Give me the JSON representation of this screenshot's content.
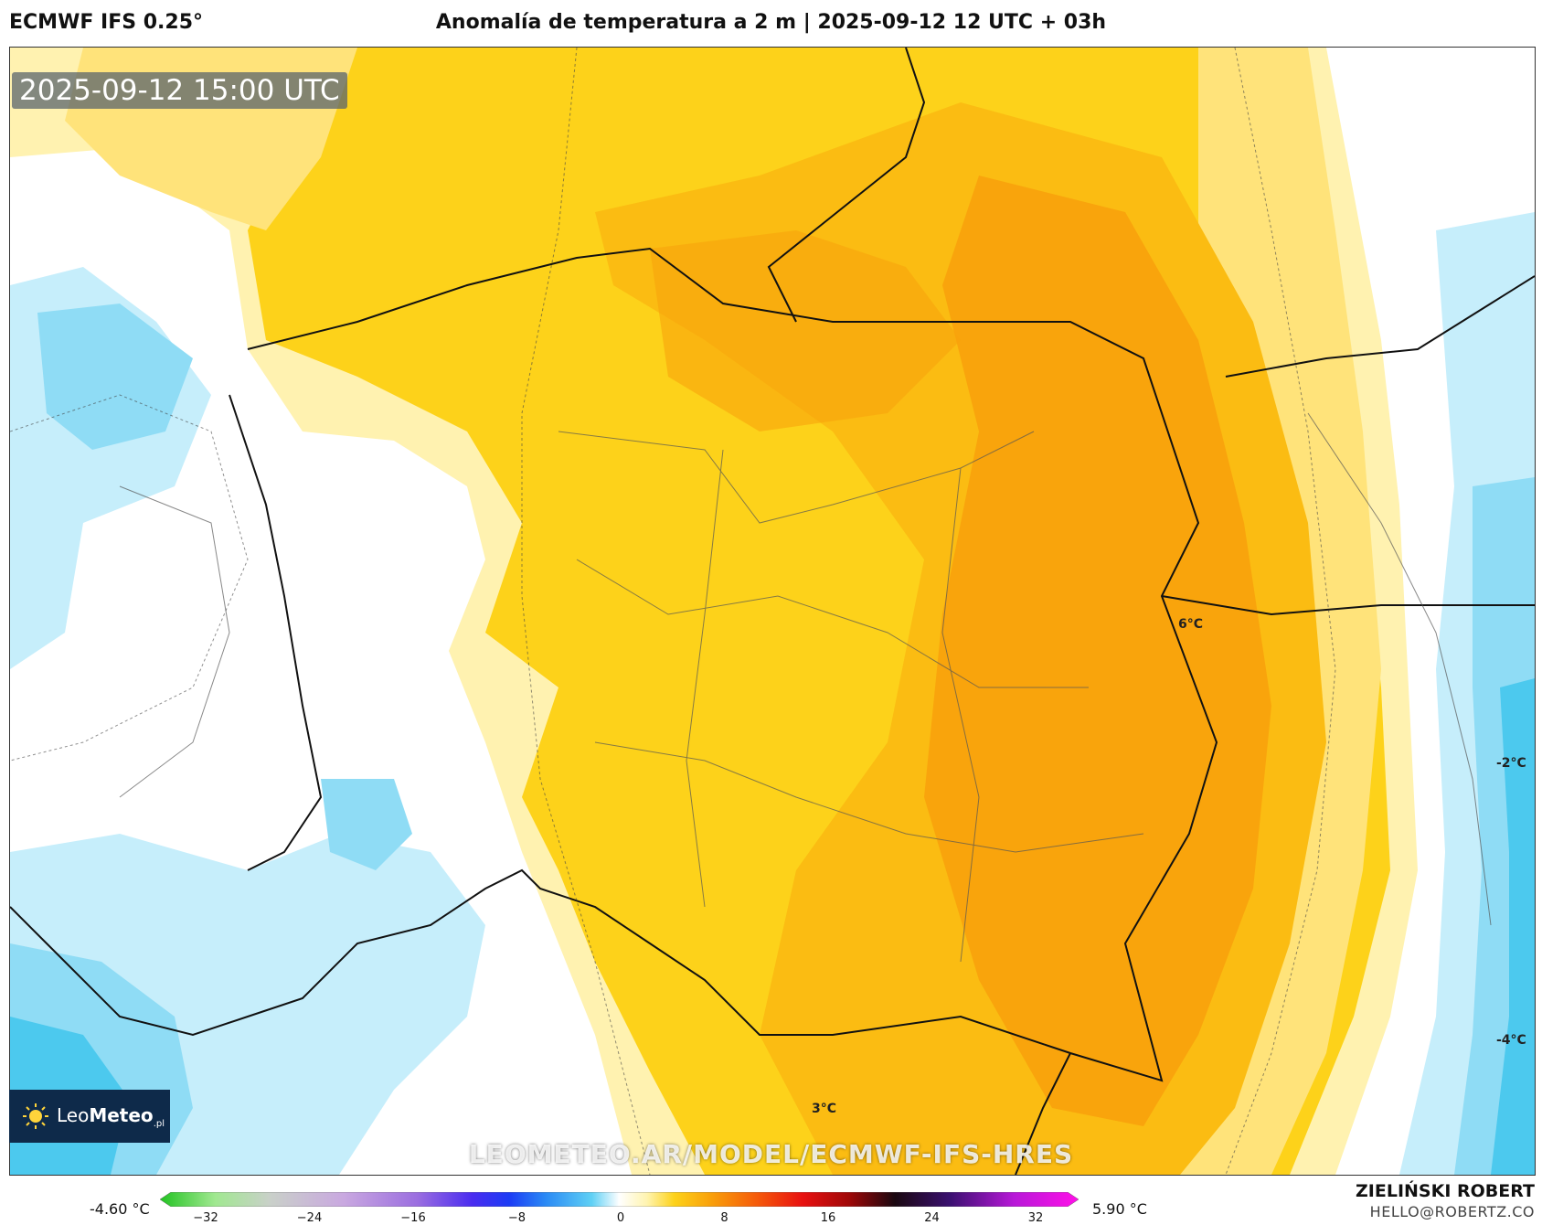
{
  "header": {
    "model": "ECMWF IFS 0.25°",
    "title": "Anomalía de temperatura a 2 m | 2025-09-12 12 UTC + 03h"
  },
  "map": {
    "valid_time": "2025-09-12 15:00 UTC",
    "watermark": "LEOMETEO.AR/MODEL/ECMWF-IFS-HRES",
    "iso_labels": [
      "6°C",
      "-2°C",
      "-4°C",
      "3°C"
    ],
    "palette": {
      "blue_strong": "#4cc9ee",
      "blue_mid": "#8fdcf5",
      "blue_light": "#c6eefb",
      "white": "#ffffff",
      "yellow_pale": "#fff2b0",
      "yellow_light": "#ffe37a",
      "yellow": "#fdd21a",
      "orange_light": "#fbbc12",
      "orange": "#f9a40c"
    }
  },
  "logo": {
    "brand_light": "Leo",
    "brand_bold": "Meteo",
    "suffix": ".pl"
  },
  "colorbar": {
    "min_label": "-4.60 °C",
    "max_label": "5.90 °C",
    "ticks": [
      "−32",
      "−24",
      "−16",
      "−8",
      "0",
      "8",
      "16",
      "24",
      "32"
    ],
    "stops": [
      "#22c322",
      "#a0e890",
      "#c9d0c9",
      "#c9a8e0",
      "#9b6ee0",
      "#4a2cf0",
      "#1c3bf5",
      "#2a8af5",
      "#5fd0f5",
      "#ffffff",
      "#fff4b0",
      "#fdd21a",
      "#f9a00a",
      "#f55a0a",
      "#e81010",
      "#a00808",
      "#1a0810",
      "#3a1070",
      "#b818d8",
      "#ff10e8"
    ]
  },
  "credits": {
    "author": "ZIELIŃSKI ROBERT",
    "email": "HELLO@ROBERTZ.CO"
  }
}
